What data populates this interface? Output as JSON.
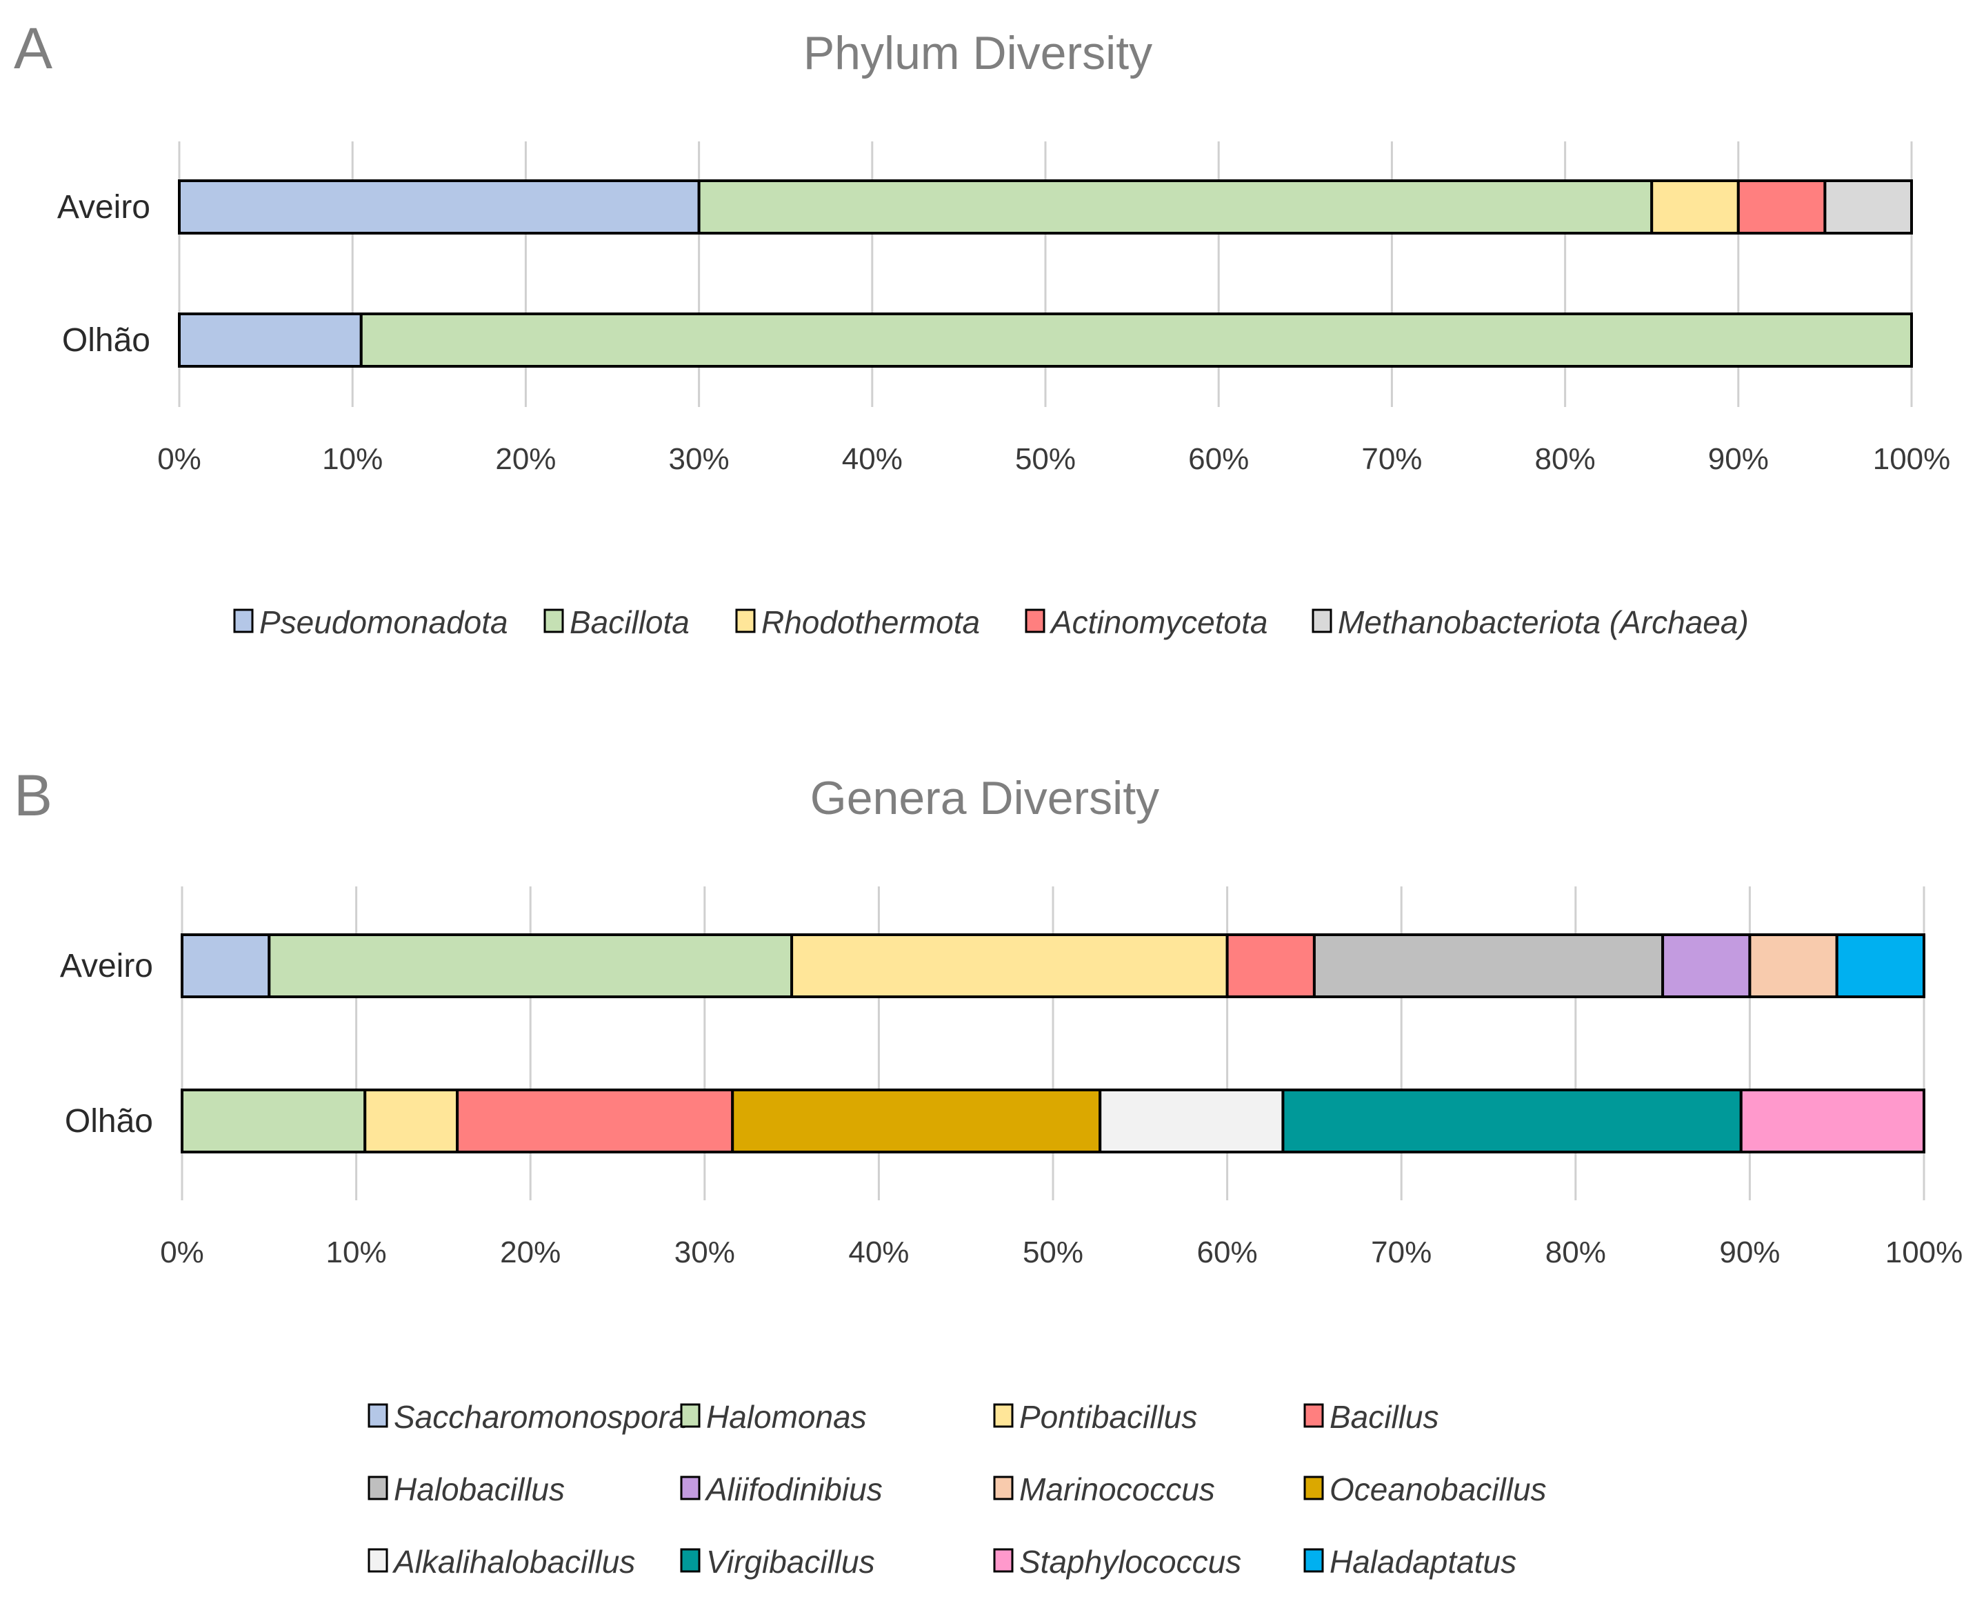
{
  "chart_data": [
    {
      "panel_label": "A",
      "type": "bar",
      "orientation": "horizontal",
      "stacked": "percent",
      "title": "Phylum Diversity",
      "categories": [
        "Aveiro",
        "Olhão"
      ],
      "series": [
        {
          "name": "Pseudomonadota",
          "color": "#b4c7e7",
          "values": [
            30,
            10.5
          ]
        },
        {
          "name": "Bacillota",
          "color": "#c5e0b4",
          "values": [
            55,
            89.5
          ]
        },
        {
          "name": "Rhodothermota",
          "color": "#ffe699",
          "values": [
            5,
            0
          ]
        },
        {
          "name": "Actinomycetota",
          "color": "#ff7f7f",
          "values": [
            5,
            0
          ]
        },
        {
          "name": "Methanobacteriota (Archaea)",
          "color": "#d9d9d9",
          "values": [
            5,
            0
          ]
        }
      ],
      "x_ticks": [
        "0%",
        "10%",
        "20%",
        "30%",
        "40%",
        "50%",
        "60%",
        "70%",
        "80%",
        "90%",
        "100%"
      ],
      "xlim": [
        0,
        100
      ],
      "grid": true,
      "legend_position": "bottom"
    },
    {
      "panel_label": "B",
      "type": "bar",
      "orientation": "horizontal",
      "stacked": "percent",
      "title": "Genera Diversity",
      "categories": [
        "Aveiro",
        "Olhão"
      ],
      "series": [
        {
          "name": "Saccharomonospora",
          "color": "#b4c7e7",
          "values": [
            5,
            0
          ]
        },
        {
          "name": "Halomonas",
          "color": "#c5e0b4",
          "values": [
            30,
            10.5
          ]
        },
        {
          "name": "Pontibacillus",
          "color": "#ffe699",
          "values": [
            25,
            5.3
          ]
        },
        {
          "name": "Bacillus",
          "color": "#ff7f7f",
          "values": [
            5,
            15.8
          ]
        },
        {
          "name": "Halobacillus",
          "color": "#bfbfbf",
          "values": [
            20,
            0
          ]
        },
        {
          "name": "Aliifodinibius",
          "color": "#c39be0",
          "values": [
            5,
            0
          ]
        },
        {
          "name": "Marinococcus",
          "color": "#f8cbad",
          "values": [
            5,
            0
          ]
        },
        {
          "name": "Oceanobacillus",
          "color": "#dba800",
          "values": [
            0,
            21.1
          ]
        },
        {
          "name": "Alkalihalobacillus",
          "color": "#f2f2f2",
          "values": [
            0,
            10.5
          ]
        },
        {
          "name": "Virgibacillus",
          "color": "#009999",
          "values": [
            0,
            26.3
          ]
        },
        {
          "name": "Staphylococcus",
          "color": "#ff99cc",
          "values": [
            0,
            10.5
          ]
        },
        {
          "name": "Haladaptatus",
          "color": "#00b0f0",
          "values": [
            5,
            0
          ]
        }
      ],
      "x_ticks": [
        "0%",
        "10%",
        "20%",
        "30%",
        "40%",
        "50%",
        "60%",
        "70%",
        "80%",
        "90%",
        "100%"
      ],
      "xlim": [
        0,
        100
      ],
      "grid": true,
      "legend_position": "bottom"
    }
  ]
}
